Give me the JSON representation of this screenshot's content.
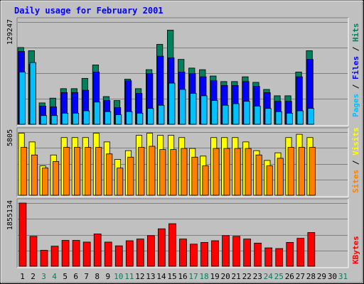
{
  "title": "Daily usage for February 2001",
  "colors": {
    "background": "#C0C0C0",
    "title": "#0000FF",
    "hits": "#00805C",
    "files": "#0000FF",
    "pages": "#00C0FF",
    "visits": "#FFFF00",
    "sites": "#FF8000",
    "kbytes": "#FF0000",
    "weekday_label": "#000000",
    "weekend_label": "#00805C"
  },
  "chart_data": [
    {
      "type": "bar",
      "panel": "hits-files-pages",
      "x": [
        1,
        2,
        3,
        4,
        5,
        6,
        7,
        8,
        9,
        10,
        11,
        12,
        13,
        14,
        15,
        16,
        17,
        18,
        19,
        20,
        21,
        22,
        23,
        24,
        25,
        26,
        27,
        28,
        29,
        30,
        31
      ],
      "ymax_label": "129247",
      "ylim": [
        0,
        129247
      ],
      "legend": {
        "labels": [
          "Pages",
          "Files",
          "Hits"
        ],
        "placement": "right"
      },
      "grid": true,
      "series": [
        {
          "name": "Hits",
          "values": [
            97000,
            93000,
            27000,
            33000,
            45000,
            45000,
            58000,
            75000,
            35000,
            30000,
            57000,
            45000,
            69000,
            101000,
            119000,
            82000,
            71000,
            69000,
            61000,
            54000,
            54000,
            60000,
            53000,
            44000,
            36000,
            36000,
            66000,
            93000,
            null,
            null,
            null
          ]
        },
        {
          "name": "Files",
          "values": [
            92000,
            76000,
            23000,
            22000,
            40000,
            40000,
            43000,
            66000,
            30000,
            21000,
            55000,
            39000,
            64000,
            86000,
            84000,
            66000,
            64000,
            60000,
            55000,
            49000,
            49000,
            54000,
            48000,
            40000,
            29000,
            29000,
            60000,
            82000,
            null,
            null,
            null
          ]
        },
        {
          "name": "Pages",
          "values": [
            66000,
            78000,
            11000,
            11000,
            14000,
            14000,
            17000,
            28000,
            16000,
            12000,
            16000,
            14000,
            20000,
            24000,
            52000,
            44000,
            39000,
            36000,
            30000,
            24000,
            26000,
            29000,
            23000,
            20000,
            16000,
            14000,
            17000,
            20000,
            null,
            null,
            null
          ]
        }
      ]
    },
    {
      "type": "bar",
      "panel": "visits-sites",
      "x": [
        1,
        2,
        3,
        4,
        5,
        6,
        7,
        8,
        9,
        10,
        11,
        12,
        13,
        14,
        15,
        16,
        17,
        18,
        19,
        20,
        21,
        22,
        23,
        24,
        25,
        26,
        27,
        28,
        29,
        30,
        31
      ],
      "ymax_label": "5805",
      "ylim": [
        0,
        5805
      ],
      "legend": {
        "labels": [
          "Sites",
          "Visits"
        ],
        "placement": "right"
      },
      "grid": true,
      "series": [
        {
          "name": "Visits",
          "values": [
            5700,
            4900,
            2700,
            3700,
            5300,
            5300,
            5300,
            5700,
            4900,
            3300,
            4100,
            5500,
            5700,
            5500,
            5500,
            5300,
            4300,
            3600,
            5300,
            5300,
            5300,
            4900,
            4100,
            3200,
            3900,
            5300,
            5600,
            5300,
            null,
            null,
            null
          ]
        },
        {
          "name": "Sites",
          "values": [
            4400,
            3700,
            2500,
            3100,
            4400,
            4400,
            4400,
            4400,
            3800,
            2500,
            3500,
            4400,
            4500,
            4200,
            4200,
            4300,
            3500,
            2700,
            4300,
            4300,
            4300,
            4300,
            3700,
            2700,
            3400,
            4400,
            4400,
            4400,
            null,
            null,
            null
          ]
        }
      ]
    },
    {
      "type": "bar",
      "panel": "kbytes",
      "x": [
        1,
        2,
        3,
        4,
        5,
        6,
        7,
        8,
        9,
        10,
        11,
        12,
        13,
        14,
        15,
        16,
        17,
        18,
        19,
        20,
        21,
        22,
        23,
        24,
        25,
        26,
        27,
        28,
        29,
        30,
        31
      ],
      "ymax_label": "1855134",
      "ylim": [
        0,
        1855134
      ],
      "legend": {
        "labels": [
          "KBytes"
        ],
        "placement": "right"
      },
      "grid": true,
      "series": [
        {
          "name": "KBytes",
          "values": [
            1855134,
            880000,
            470000,
            590000,
            760000,
            760000,
            710000,
            950000,
            710000,
            600000,
            750000,
            800000,
            900000,
            1100000,
            1250000,
            800000,
            650000,
            700000,
            750000,
            900000,
            880000,
            800000,
            680000,
            540000,
            520000,
            700000,
            820000,
            990000,
            null,
            null,
            null
          ]
        }
      ]
    }
  ],
  "x_labels": [
    {
      "text": "1",
      "weekend": false
    },
    {
      "text": "2",
      "weekend": false
    },
    {
      "text": "3",
      "weekend": true
    },
    {
      "text": "4",
      "weekend": true
    },
    {
      "text": "5",
      "weekend": false
    },
    {
      "text": "6",
      "weekend": false
    },
    {
      "text": "7",
      "weekend": false
    },
    {
      "text": "8",
      "weekend": false
    },
    {
      "text": "9",
      "weekend": false
    },
    {
      "text": "10",
      "weekend": true
    },
    {
      "text": "11",
      "weekend": true
    },
    {
      "text": "12",
      "weekend": false
    },
    {
      "text": "13",
      "weekend": false
    },
    {
      "text": "14",
      "weekend": false
    },
    {
      "text": "15",
      "weekend": false
    },
    {
      "text": "16",
      "weekend": false
    },
    {
      "text": "17",
      "weekend": true
    },
    {
      "text": "18",
      "weekend": true
    },
    {
      "text": "19",
      "weekend": false
    },
    {
      "text": "20",
      "weekend": false
    },
    {
      "text": "21",
      "weekend": false
    },
    {
      "text": "22",
      "weekend": false
    },
    {
      "text": "23",
      "weekend": false
    },
    {
      "text": "24",
      "weekend": true
    },
    {
      "text": "25",
      "weekend": true
    },
    {
      "text": "26",
      "weekend": false
    },
    {
      "text": "27",
      "weekend": false
    },
    {
      "text": "28",
      "weekend": false
    },
    {
      "text": "29",
      "weekend": false
    },
    {
      "text": "30",
      "weekend": false
    },
    {
      "text": "31",
      "weekend": true
    }
  ],
  "legend_text": {
    "top": [
      {
        "text": "Pages",
        "color": "#00C0FF"
      },
      {
        "text": " / ",
        "color": "#000000"
      },
      {
        "text": "Files",
        "color": "#0000FF"
      },
      {
        "text": " / ",
        "color": "#000000"
      },
      {
        "text": "Hits",
        "color": "#00805C"
      }
    ],
    "middle": [
      {
        "text": "Sites",
        "color": "#FF8000"
      },
      {
        "text": " / ",
        "color": "#000000"
      },
      {
        "text": "Visits",
        "color": "#FFFF00"
      }
    ],
    "bottom": [
      {
        "text": "KBytes",
        "color": "#FF0000"
      }
    ]
  }
}
